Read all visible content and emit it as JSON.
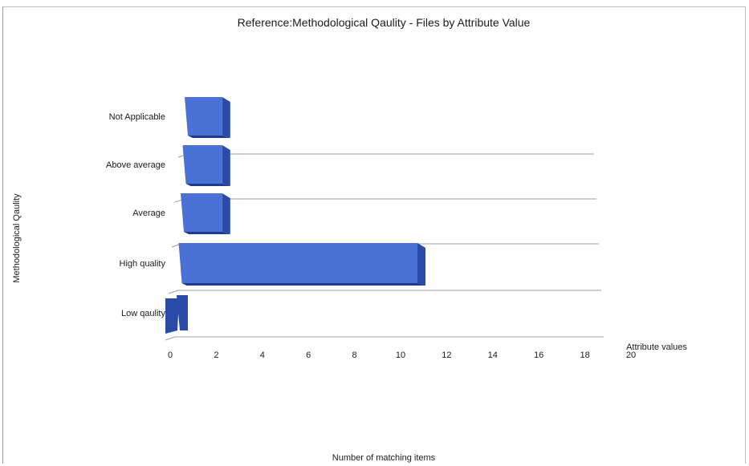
{
  "chart_data": {
    "type": "bar",
    "orientation": "horizontal",
    "title": "Reference:Methodological Qaulity - Files by Attribute Value",
    "ylabel": "Methodological Qaulity",
    "xlabel": "Number of matching items",
    "axis_caption": "Attribute values",
    "categories": [
      "Not Applicable",
      "Above average",
      "Average",
      "High quality",
      "Low qaulity"
    ],
    "values": [
      2,
      2,
      2,
      10,
      0
    ],
    "xlim": [
      0,
      20
    ],
    "xticks": [
      "0",
      "2",
      "4",
      "6",
      "8",
      "10",
      "12",
      "14",
      "16",
      "18",
      "20"
    ],
    "grid": true,
    "style": "3d",
    "colors": {
      "front": "#4a72d6",
      "side": "#2a4aa8",
      "top": "#6a8ee2",
      "floor": "#a0a0a0"
    }
  }
}
